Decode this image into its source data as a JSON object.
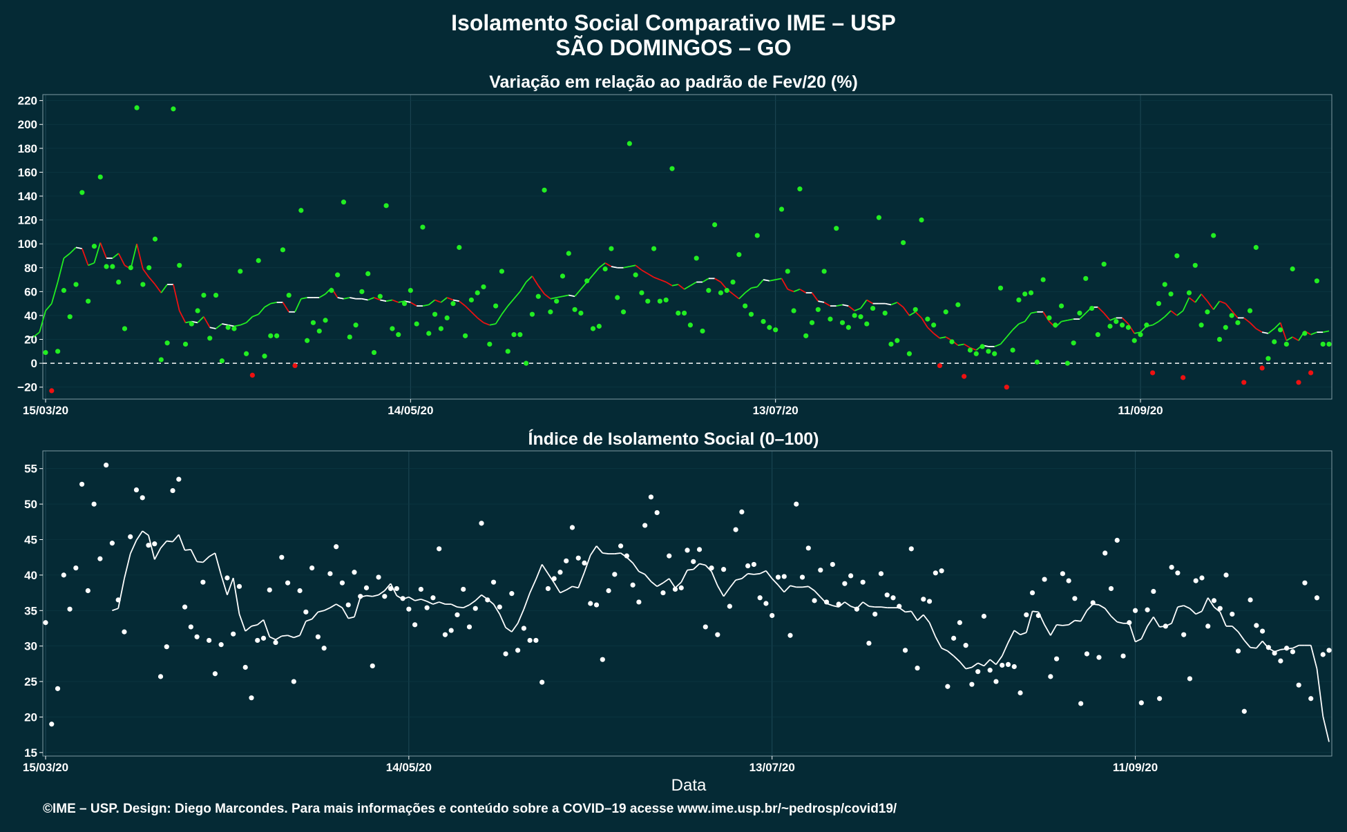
{
  "title_line1": "Isolamento Social Comparativo IME – USP",
  "title_line2": "SÃO DOMINGOS – GO",
  "footer": "©IME – USP. Design: Diego Marcondes. Para mais informações e conteúdo sobre a COVID–19 acesse www.ime.usp.br/~pedrosp/covid19/",
  "colors": {
    "background": "#052a35",
    "positive": "#22ee22",
    "negative": "#ee1111",
    "white": "#ffffff"
  },
  "chart_data": [
    {
      "type": "scatter",
      "title": "Variação em relação ao padrão de Fev/20 (%)",
      "xlabel": "",
      "ylim": [
        -30,
        225
      ],
      "yticks": [
        -20,
        0,
        20,
        40,
        60,
        80,
        100,
        120,
        140,
        160,
        180,
        200,
        220
      ],
      "xticks": [
        "15/03/20",
        "14/05/20",
        "13/07/20",
        "11/09/20"
      ],
      "start_date": "2020-03-15",
      "points": [
        9,
        -23,
        10,
        61,
        39,
        66,
        143,
        52,
        98,
        156,
        81,
        81,
        68,
        29,
        80,
        214,
        66,
        80,
        104,
        3,
        17,
        213,
        82,
        16,
        33,
        44,
        57,
        21,
        57,
        2,
        30,
        29,
        77,
        8,
        -10,
        86,
        6,
        23,
        23,
        95,
        57,
        -2,
        128,
        19,
        34,
        27,
        36,
        61,
        74,
        135,
        22,
        32,
        60,
        75,
        9,
        56,
        132,
        29,
        24,
        50,
        61,
        33,
        114,
        25,
        41,
        29,
        38,
        50,
        97,
        23,
        53,
        59,
        64,
        16,
        48,
        77,
        10,
        24,
        24,
        0,
        41,
        56,
        145,
        43,
        52,
        73,
        92,
        45,
        42,
        69,
        29,
        31,
        79,
        96,
        55,
        43,
        184,
        74,
        59,
        52,
        96,
        52,
        53,
        163,
        42,
        42,
        32,
        88,
        27,
        61,
        116,
        59,
        61,
        68,
        91,
        48,
        41,
        107,
        35,
        30,
        28,
        129,
        77,
        44,
        146,
        23,
        34,
        45,
        77,
        37,
        113,
        34,
        30,
        40,
        39,
        33,
        46,
        122,
        42,
        16,
        19,
        101,
        8,
        45,
        120,
        37,
        32,
        -2,
        43,
        18,
        49,
        -11,
        11,
        8,
        14,
        10,
        8,
        63,
        -20,
        11,
        53,
        58,
        59,
        1,
        70,
        38,
        32,
        48,
        0,
        17,
        42,
        71,
        46,
        24,
        83,
        31,
        35,
        32,
        30,
        19,
        24,
        32,
        -8,
        50,
        66,
        58,
        90,
        -12,
        59,
        82,
        32,
        43,
        107,
        20,
        30,
        40,
        34,
        -16,
        44,
        97,
        -4,
        4,
        18,
        28,
        16,
        79,
        -16,
        25,
        -8,
        69,
        16,
        16
      ],
      "moving_average": [
        22,
        22,
        26,
        44,
        50,
        68,
        88,
        92,
        97,
        96,
        82,
        84,
        101,
        88,
        88,
        92,
        82,
        79,
        100,
        79,
        72,
        66,
        59,
        66,
        66,
        44,
        34,
        35,
        34,
        39,
        30,
        29,
        33,
        32,
        31,
        32,
        34,
        39,
        41,
        47,
        50,
        51,
        51,
        43,
        43,
        54,
        55,
        55,
        55,
        58,
        63,
        55,
        54,
        55,
        54,
        54,
        53,
        55,
        53,
        52,
        53,
        51,
        52,
        51,
        48,
        48,
        49,
        53,
        51,
        55,
        53,
        52,
        48,
        43,
        38,
        34,
        32,
        33,
        41,
        48,
        54,
        60,
        68,
        73,
        65,
        58,
        54,
        55,
        56,
        57,
        56,
        62,
        68,
        74,
        80,
        84,
        81,
        80,
        80,
        81,
        82,
        78,
        75,
        72,
        70,
        68,
        65,
        66,
        62,
        65,
        68,
        68,
        71,
        71,
        68,
        62,
        58,
        54,
        59,
        63,
        64,
        70,
        69,
        70,
        71,
        62,
        60,
        62,
        59,
        59,
        52,
        51,
        48,
        48,
        49,
        48,
        44,
        46,
        53,
        50,
        50,
        50,
        49,
        51,
        47,
        40,
        43,
        38,
        30,
        25,
        21,
        22,
        19,
        15,
        16,
        13,
        11,
        15,
        14,
        14,
        16,
        22,
        28,
        33,
        35,
        42,
        43,
        43,
        35,
        30,
        35,
        36,
        37,
        37,
        42,
        47,
        47,
        42,
        36,
        38,
        38,
        33,
        25,
        26,
        31,
        32,
        35,
        39,
        44,
        40,
        44,
        55,
        51,
        58,
        52,
        45,
        52,
        50,
        44,
        38,
        38,
        34,
        29,
        26,
        25,
        29,
        34,
        19,
        22,
        19,
        27,
        24,
        26,
        26,
        27
      ]
    },
    {
      "type": "scatter",
      "title": "Índice de Isolamento Social (0–100)",
      "xlabel": "Data",
      "ylim": [
        14.5,
        57.5
      ],
      "yticks": [
        15,
        20,
        25,
        30,
        35,
        40,
        45,
        50,
        55
      ],
      "xticks": [
        "15/03/20",
        "14/05/20",
        "13/07/20",
        "11/09/20"
      ],
      "start_date": "2020-03-15",
      "points": [
        33.3,
        19.0,
        24.0,
        40.0,
        35.2,
        41.0,
        52.8,
        37.8,
        50.0,
        42.3,
        55.5,
        44.5,
        36.5,
        32.0,
        45.4,
        52.0,
        50.9,
        44.2,
        44.4,
        25.7,
        29.9,
        51.9,
        53.5,
        35.5,
        32.7,
        31.3,
        39.0,
        30.8,
        26.1,
        30.2,
        39.6,
        31.7,
        38.4,
        27.0,
        22.7,
        30.8,
        31.1,
        37.9,
        30.5,
        42.5,
        38.9,
        25.0,
        37.8,
        34.8,
        41.0,
        31.3,
        29.7,
        40.2,
        44.0,
        38.9,
        35.8,
        40.4,
        37.0,
        38.2,
        27.2,
        39.7,
        37.0,
        38.1,
        38.1,
        36.7,
        35.2,
        33.0,
        38.0,
        35.4,
        36.8,
        43.7,
        31.6,
        32.2,
        34.4,
        38.0,
        32.7,
        35.3,
        47.3,
        36.5,
        39.0,
        35.5,
        28.9,
        37.4,
        29.4,
        32.5,
        30.8,
        30.8,
        24.9,
        38.1,
        39.5,
        40.4,
        42.0,
        46.7,
        42.4,
        41.7,
        36.0,
        35.8,
        28.1,
        37.8,
        40.1,
        44.1,
        42.7,
        38.6,
        36.2,
        47.0,
        51.0,
        48.8,
        37.5,
        42.7,
        38.0,
        38.2,
        43.5,
        41.9,
        43.6,
        32.7,
        41.0,
        31.6,
        40.8,
        35.6,
        46.4,
        48.9,
        41.3,
        41.5,
        36.8,
        36.0,
        34.3,
        39.7,
        39.8,
        31.5,
        50.0,
        39.7,
        43.8,
        36.4,
        40.7,
        36.2,
        41.5,
        35.9,
        38.8,
        39.9,
        35.2,
        39.0,
        30.4,
        34.5,
        40.2,
        37.2,
        36.8,
        35.6,
        29.4,
        43.7,
        26.9,
        36.6,
        36.3,
        40.3,
        40.6,
        24.3,
        31.1,
        33.3,
        30.1,
        24.6,
        26.4,
        34.2,
        26.6,
        25.0,
        27.3,
        27.4,
        27.1,
        23.4,
        34.4,
        37.5,
        34.3,
        39.4,
        25.7,
        28.2,
        40.2,
        39.2,
        36.7,
        21.9,
        28.9,
        36.1,
        28.4,
        43.1,
        38.1,
        44.9,
        28.6,
        33.3,
        35.0,
        22.0,
        35.1,
        37.7,
        22.6,
        32.8,
        41.1,
        40.3,
        31.6,
        25.4,
        39.2,
        39.6,
        32.8,
        36.4,
        35.3,
        40.0,
        34.5,
        29.3,
        20.8,
        36.5,
        32.9,
        32.1,
        29.8,
        29.0,
        27.9,
        29.7,
        29.2,
        24.5,
        38.9,
        22.6,
        36.8,
        28.8,
        29.4
      ],
      "moving_average": [
        35.0,
        35.3,
        39.5,
        43.0,
        44.9,
        46.2,
        45.6,
        42.2,
        43.8,
        44.8,
        44.7,
        45.7,
        43.5,
        43.6,
        41.9,
        41.8,
        42.6,
        43.1,
        40.0,
        37.2,
        39.6,
        34.5,
        32.1,
        32.8,
        33.0,
        33.7,
        31.3,
        30.9,
        31.4,
        31.5,
        31.2,
        31.5,
        33.5,
        33.8,
        34.8,
        35.0,
        35.4,
        35.9,
        35.4,
        33.9,
        34.1,
        36.9,
        37.1,
        37.0,
        37.2,
        37.8,
        38.8,
        37.1,
        36.6,
        36.9,
        36.4,
        36.6,
        36.3,
        35.9,
        36.2,
        35.9,
        35.9,
        35.5,
        35.4,
        35.8,
        36.4,
        37.2,
        36.6,
        35.9,
        34.5,
        32.6,
        32.0,
        33.2,
        35.2,
        37.5,
        39.4,
        41.5,
        40.2,
        38.9,
        37.5,
        37.9,
        38.4,
        38.2,
        40.4,
        42.8,
        44.1,
        43.1,
        43.0,
        43.0,
        43.1,
        42.5,
        41.7,
        40.5,
        40.1,
        39.1,
        38.4,
        38.9,
        39.5,
        38.2,
        39.0,
        40.7,
        40.8,
        41.6,
        41.4,
        40.5,
        38.5,
        37.0,
        38.2,
        39.3,
        39.5,
        40.2,
        40.1,
        40.2,
        40.6,
        39.5,
        38.6,
        37.6,
        38.5,
        38.3,
        38.3,
        38.4,
        37.8,
        36.9,
        36.0,
        35.7,
        35.5,
        36.2,
        35.6,
        35.3,
        36.2,
        35.6,
        35.5,
        35.5,
        35.4,
        35.4,
        35.4,
        34.8,
        34.9,
        33.6,
        34.4,
        33.3,
        31.3,
        29.7,
        29.3,
        28.6,
        27.8,
        26.8,
        27.0,
        27.6,
        27.2,
        28.1,
        27.4,
        28.6,
        30.5,
        32.2,
        31.6,
        31.9,
        34.9,
        34.8,
        33.0,
        31.5,
        33.0,
        32.9,
        33.0,
        33.6,
        33.5,
        35.0,
        35.9,
        35.8,
        35.3,
        34.2,
        33.4,
        33.2,
        33.2,
        30.6,
        31.0,
        32.8,
        34.1,
        32.7,
        32.8,
        33.2,
        35.5,
        35.7,
        35.3,
        34.5,
        34.9,
        36.8,
        35.5,
        34.8,
        32.8,
        32.8,
        32.0,
        30.8,
        29.8,
        29.7,
        30.7,
        29.7,
        29.2,
        29.5,
        29.6,
        29.7,
        30.1,
        30.1,
        30.1,
        26.8,
        20.1,
        16.5
      ]
    }
  ]
}
